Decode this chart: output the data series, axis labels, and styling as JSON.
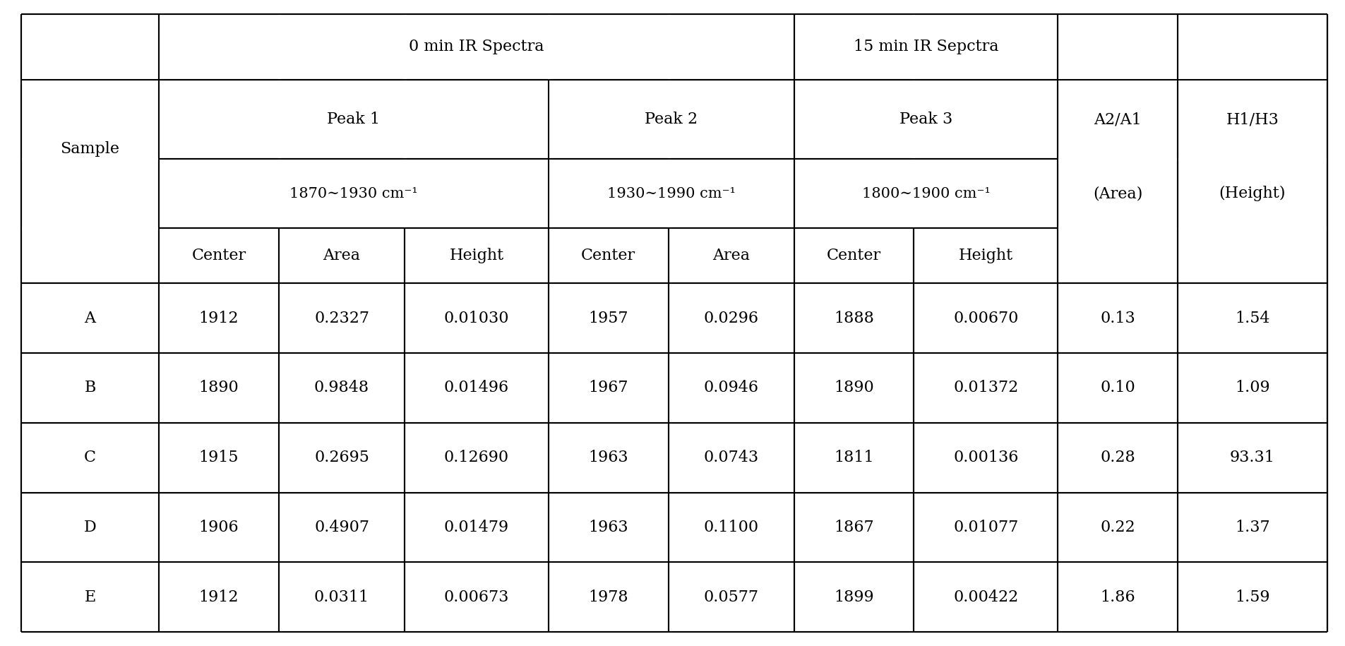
{
  "bg_color": "#ffffff",
  "line_color": "#000000",
  "text_color": "#000000",
  "font_size": 16,
  "data": [
    [
      "A",
      "1912",
      "0.2327",
      "0.01030",
      "1957",
      "0.0296",
      "1888",
      "0.00670",
      "0.13",
      "1.54"
    ],
    [
      "B",
      "1890",
      "0.9848",
      "0.01496",
      "1967",
      "0.0946",
      "1890",
      "0.01372",
      "0.10",
      "1.09"
    ],
    [
      "C",
      "1915",
      "0.2695",
      "0.12690",
      "1963",
      "0.0743",
      "1811",
      "0.00136",
      "0.28",
      "93.31"
    ],
    [
      "D",
      "1906",
      "0.4907",
      "0.01479",
      "1963",
      "0.1100",
      "1867",
      "0.01077",
      "0.22",
      "1.37"
    ],
    [
      "E",
      "1912",
      "0.0311",
      "0.00673",
      "1978",
      "0.0577",
      "1899",
      "0.00422",
      "1.86",
      "1.59"
    ]
  ]
}
